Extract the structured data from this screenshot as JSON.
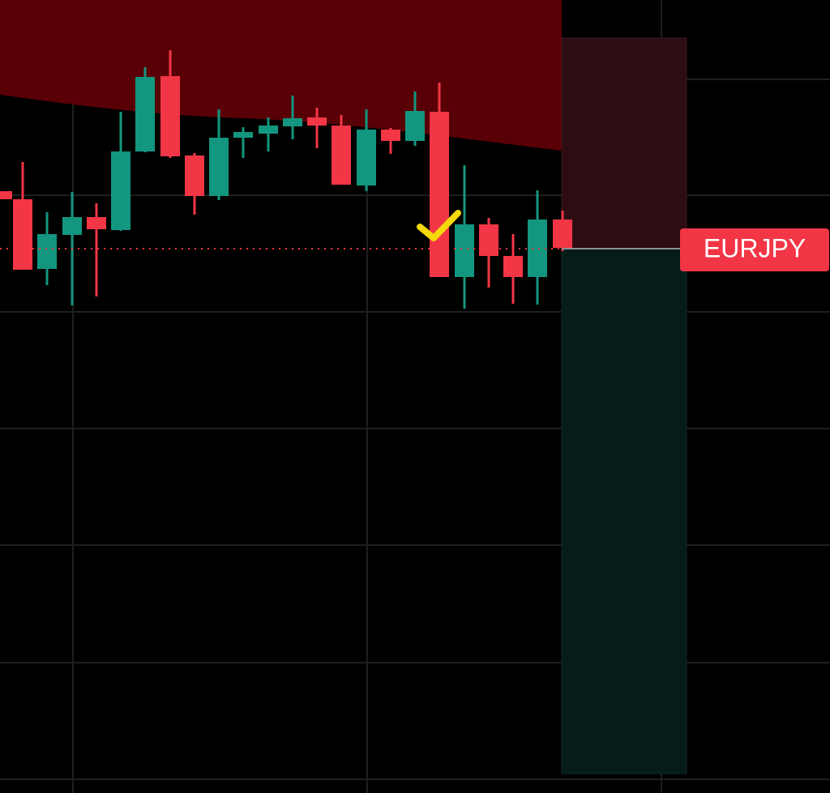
{
  "symbol_label": "EURJPY"
}
